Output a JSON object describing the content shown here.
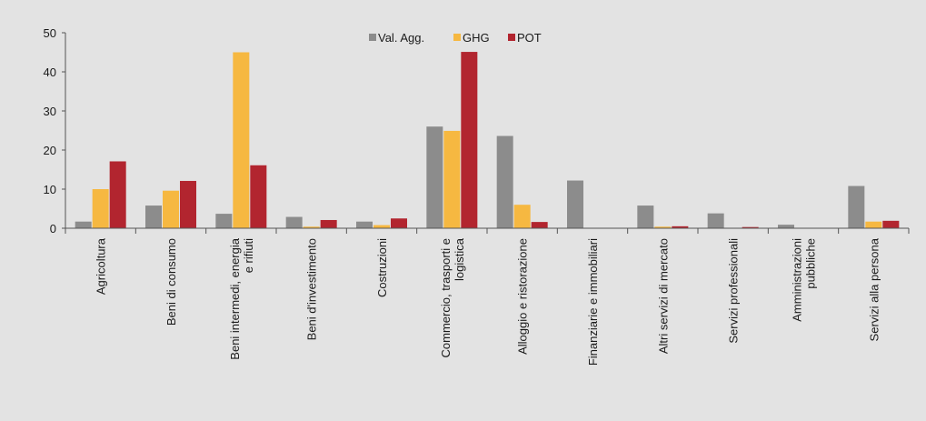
{
  "chart_data": {
    "type": "bar",
    "title": "",
    "xlabel": "",
    "ylabel": "",
    "ylim": [
      0,
      50
    ],
    "yticks": [
      0,
      10,
      20,
      30,
      40,
      50
    ],
    "grid": false,
    "legend_position": "top-center",
    "categories": [
      [
        "Agricoltura"
      ],
      [
        "Beni di consumo"
      ],
      [
        "Beni intermedi, energia",
        "e rifiuti"
      ],
      [
        "Beni d'investimento"
      ],
      [
        "Costruzioni"
      ],
      [
        "Commercio, trasporti e",
        "logistica"
      ],
      [
        "Alloggio e ristorazione"
      ],
      [
        "Finanziarie e immobiliari"
      ],
      [
        "Altri servizi di mercato"
      ],
      [
        "Servizi professionali"
      ],
      [
        "Amministrazioni",
        "pubbliche"
      ],
      [
        "Servizi alla persona"
      ]
    ],
    "series": [
      {
        "name": "Val. Agg.",
        "color": "#8c8c8c",
        "values": [
          1.7,
          5.8,
          3.7,
          2.9,
          1.7,
          26.0,
          23.6,
          12.2,
          5.8,
          3.8,
          0.9,
          10.8
        ]
      },
      {
        "name": "GHG",
        "color": "#f6b841",
        "values": [
          10.0,
          9.6,
          45.0,
          0.4,
          0.8,
          24.9,
          6.0,
          0.0,
          0.4,
          0.0,
          0.0,
          1.7
        ]
      },
      {
        "name": "POT",
        "color": "#b2252f",
        "values": [
          17.1,
          12.1,
          16.1,
          2.1,
          2.5,
          45.1,
          1.6,
          0.0,
          0.5,
          0.3,
          0.0,
          1.9
        ]
      }
    ]
  }
}
